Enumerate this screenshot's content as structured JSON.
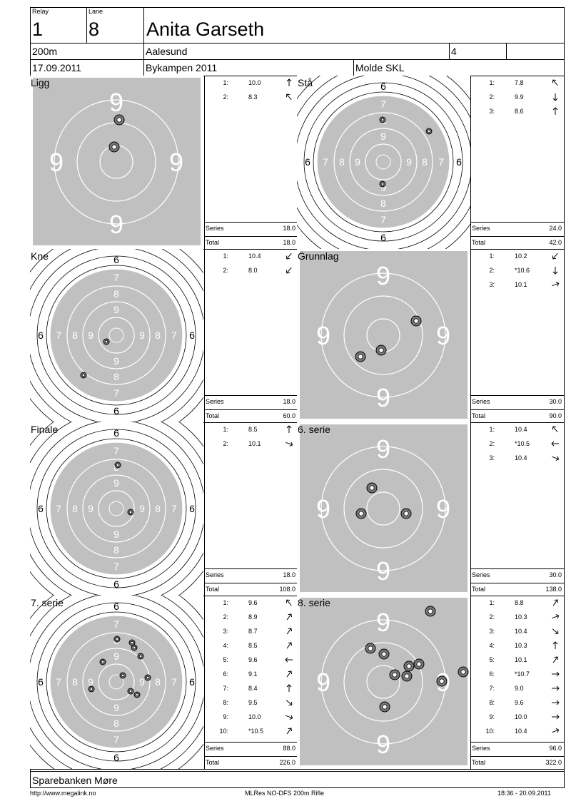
{
  "header": {
    "relay_label": "Relay",
    "relay": "1",
    "lane_label": "Lane",
    "lane": "8",
    "name": "Anita Garseth",
    "distance": "200m",
    "place": "Aalesund",
    "class_no": "4",
    "date": "17.09.2011",
    "event": "Bykampen 2011",
    "club": "Molde SKL"
  },
  "cells": [
    {
      "title": "Ligg",
      "target": "F",
      "series_label": "Series",
      "series": "18.0",
      "total_label": "Total",
      "total": "18.0",
      "shots": [
        {
          "n": "1:",
          "v": "10.0",
          "dir": "up"
        },
        {
          "n": "2:",
          "v": "8.3",
          "dir": "up-left"
        }
      ]
    },
    {
      "title": "Stå",
      "target": "C",
      "series_label": "Series",
      "series": "24.0",
      "total_label": "Total",
      "total": "42.0",
      "shots": [
        {
          "n": "1:",
          "v": "7.8",
          "dir": "up-left"
        },
        {
          "n": "2:",
          "v": "9.9",
          "dir": "down"
        },
        {
          "n": "3:",
          "v": "8.6",
          "dir": "up"
        }
      ]
    },
    {
      "title": "Kne",
      "target": "C",
      "series_label": "Series",
      "series": "18.0",
      "total_label": "Total",
      "total": "60.0",
      "shots": [
        {
          "n": "1:",
          "v": "10.4",
          "dir": "down-left"
        },
        {
          "n": "2:",
          "v": "8.0",
          "dir": "down-left"
        }
      ]
    },
    {
      "title": "Grunnlag",
      "target": "F",
      "series_label": "Series",
      "series": "30.0",
      "total_label": "Total",
      "total": "90.0",
      "shots": [
        {
          "n": "1:",
          "v": "10.2",
          "dir": "down-left"
        },
        {
          "n": "2:",
          "v": "*10.6",
          "dir": "down"
        },
        {
          "n": "3:",
          "v": "10.1",
          "dir": "right-up"
        }
      ]
    },
    {
      "title": "Finale",
      "target": "C",
      "series_label": "Series",
      "series": "18.0",
      "total_label": "Total",
      "total": "108.0",
      "shots": [
        {
          "n": "1:",
          "v": "8.5",
          "dir": "up"
        },
        {
          "n": "2:",
          "v": "10.1",
          "dir": "right-down"
        }
      ]
    },
    {
      "title": "6. serie",
      "target": "F",
      "series_label": "Series",
      "series": "30.0",
      "total_label": "Total",
      "total": "138.0",
      "shots": [
        {
          "n": "1:",
          "v": "10.4",
          "dir": "up-left"
        },
        {
          "n": "2:",
          "v": "*10.5",
          "dir": "left"
        },
        {
          "n": "3:",
          "v": "10.4",
          "dir": "right-down"
        }
      ]
    },
    {
      "title": "7. serie",
      "target": "C",
      "series_label": "Series",
      "series": "88.0",
      "total_label": "Total",
      "total": "226.0",
      "shots": [
        {
          "n": "1:",
          "v": "9.6",
          "dir": "up-left"
        },
        {
          "n": "2:",
          "v": "8.9",
          "dir": "up-right"
        },
        {
          "n": "3:",
          "v": "8.7",
          "dir": "up-right"
        },
        {
          "n": "4:",
          "v": "8.5",
          "dir": "up-right"
        },
        {
          "n": "5:",
          "v": "9.6",
          "dir": "left"
        },
        {
          "n": "6:",
          "v": "9.1",
          "dir": "up-right"
        },
        {
          "n": "7:",
          "v": "8.4",
          "dir": "up"
        },
        {
          "n": "8:",
          "v": "9.5",
          "dir": "down-right"
        },
        {
          "n": "9:",
          "v": "10.0",
          "dir": "right-down"
        },
        {
          "n": "10:",
          "v": "*10.5",
          "dir": "up-right"
        }
      ]
    },
    {
      "title": "8. serie",
      "target": "F",
      "series_label": "Series",
      "series": "96.0",
      "total_label": "Total",
      "total": "322.0",
      "shots": [
        {
          "n": "1:",
          "v": "8.8",
          "dir": "up-right"
        },
        {
          "n": "2:",
          "v": "10.3",
          "dir": "right-up"
        },
        {
          "n": "3:",
          "v": "10.4",
          "dir": "down-right"
        },
        {
          "n": "4:",
          "v": "10.3",
          "dir": "up"
        },
        {
          "n": "5:",
          "v": "10.1",
          "dir": "up-right"
        },
        {
          "n": "6:",
          "v": "*10.7",
          "dir": "right"
        },
        {
          "n": "7:",
          "v": "9.0",
          "dir": "right"
        },
        {
          "n": "8:",
          "v": "9.6",
          "dir": "right"
        },
        {
          "n": "9:",
          "v": "10.0",
          "dir": "right"
        },
        {
          "n": "10:",
          "v": "10.4",
          "dir": "right-up"
        }
      ]
    }
  ],
  "target_labels": {
    "field_number": "9",
    "ring_numbers": [
      "6",
      "7",
      "8",
      "9"
    ]
  },
  "footer": {
    "sponsor": "Sparebanken Møre",
    "url": "http://www.megalink.no",
    "software": "MLRes NO-DFS 200m Rifle",
    "timestamp": "18:36 - 20.09.2011"
  }
}
